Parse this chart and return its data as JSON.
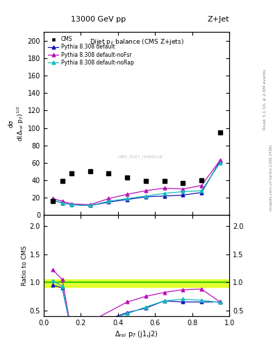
{
  "title_top": "13000 GeV pp",
  "title_right": "Z+Jet",
  "plot_title": "Dijet p_{T} balance (CMS Z+jets)",
  "xlabel": "Δ_{rel} p_{T} (j1,j2)",
  "ylabel_main": "dσ/d(Δ_{rel} p_{T})^{1/2}",
  "ylabel_ratio": "Ratio to CMS",
  "right_label_top": "Rivet 3.1.10, ≥ 2.6M events",
  "right_label_bottom": "mcplots.cern.ch [arXiv:1306.3436]",
  "watermark": "CMS_2021_I1866118",
  "cms_x": [
    0.05,
    0.1,
    0.15,
    0.25,
    0.35,
    0.45,
    0.55,
    0.65,
    0.75,
    0.85,
    0.95
  ],
  "cms_y": [
    16.0,
    39.0,
    48.0,
    50.0,
    48.0,
    43.0,
    39.0,
    39.0,
    37.0,
    40.0,
    95.0
  ],
  "py_default_x": [
    0.05,
    0.1,
    0.15,
    0.25,
    0.35,
    0.45,
    0.55,
    0.65,
    0.75,
    0.85,
    0.95
  ],
  "py_default_y": [
    17.0,
    14.0,
    12.0,
    11.0,
    15.0,
    18.0,
    21.0,
    22.0,
    23.0,
    26.0,
    62.0
  ],
  "py_nofsr_x": [
    0.05,
    0.1,
    0.15,
    0.25,
    0.35,
    0.45,
    0.55,
    0.65,
    0.75,
    0.85,
    0.95
  ],
  "py_nofsr_y": [
    19.0,
    16.0,
    13.0,
    12.0,
    19.0,
    24.0,
    28.0,
    31.0,
    30.0,
    34.0,
    63.0
  ],
  "py_norap_x": [
    0.05,
    0.1,
    0.15,
    0.25,
    0.35,
    0.45,
    0.55,
    0.65,
    0.75,
    0.85,
    0.95
  ],
  "py_norap_y": [
    17.0,
    14.0,
    12.0,
    11.0,
    16.0,
    19.0,
    22.0,
    25.0,
    27.0,
    28.0,
    60.0
  ],
  "ratio_default_x": [
    0.05,
    0.1,
    0.15,
    0.45,
    0.55,
    0.65,
    0.75,
    0.85,
    0.95
  ],
  "ratio_default_y": [
    0.95,
    0.9,
    0.12,
    0.46,
    0.54,
    0.67,
    0.65,
    0.65,
    0.65
  ],
  "ratio_nofsr_x": [
    0.05,
    0.1,
    0.15,
    0.45,
    0.55,
    0.65,
    0.75,
    0.85,
    0.95
  ],
  "ratio_nofsr_y": [
    1.22,
    1.05,
    0.12,
    0.65,
    0.75,
    0.82,
    0.87,
    0.88,
    0.65
  ],
  "ratio_norap_x": [
    0.05,
    0.1,
    0.15,
    0.45,
    0.55,
    0.65,
    0.75,
    0.85,
    0.95
  ],
  "ratio_norap_y": [
    1.03,
    0.93,
    0.12,
    0.44,
    0.56,
    0.67,
    0.7,
    0.68,
    0.64
  ],
  "color_default": "#1111bb",
  "color_nofsr": "#bb11bb",
  "color_norap": "#11bbbb",
  "color_cms": "black",
  "ylim_main": [
    0,
    210
  ],
  "ylim_ratio": [
    0.4,
    2.2
  ],
  "xlim": [
    0.0,
    1.0
  ],
  "yticks_main": [
    0,
    20,
    40,
    60,
    80,
    100,
    120,
    140,
    160,
    180,
    200
  ],
  "yticks_ratio": [
    0.5,
    1.0,
    1.5,
    2.0
  ],
  "ratio_band_lo": 0.92,
  "ratio_band_hi": 1.05,
  "ratio_band_color": "#ddff00",
  "ratio_line_color": "#33cc00"
}
